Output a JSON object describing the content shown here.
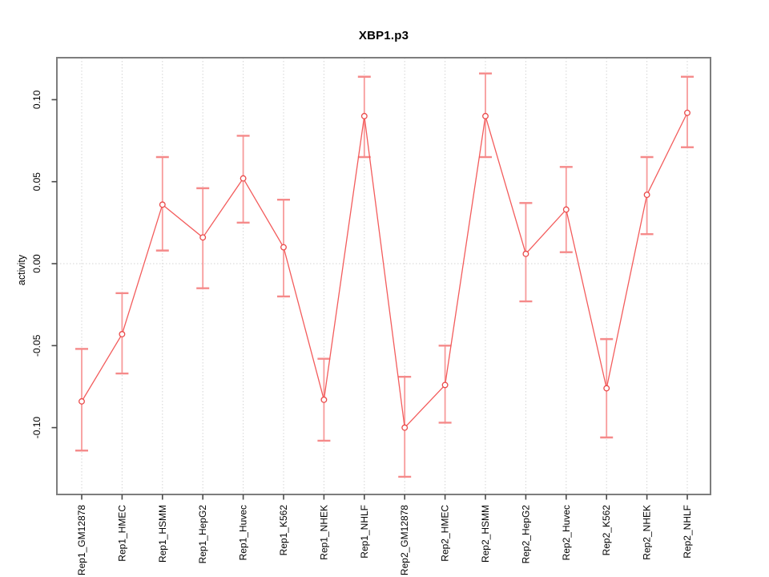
{
  "chart_data": {
    "type": "line",
    "title": "XBP1.p3",
    "xlabel": "",
    "ylabel": "activity",
    "categories": [
      "Rep1_GM12878",
      "Rep1_HMEC",
      "Rep1_HSMM",
      "Rep1_HepG2",
      "Rep1_Huvec",
      "Rep1_K562",
      "Rep1_NHEK",
      "Rep1_NHLF",
      "Rep2_GM12878",
      "Rep2_HMEC",
      "Rep2_HSMM",
      "Rep2_HepG2",
      "Rep2_Huvec",
      "Rep2_K562",
      "Rep2_NHEK",
      "Rep2_NHLF"
    ],
    "series": [
      {
        "name": "activity",
        "values": [
          -0.084,
          -0.043,
          0.036,
          0.016,
          0.052,
          0.01,
          -0.083,
          0.09,
          -0.1,
          -0.074,
          0.09,
          0.006,
          0.033,
          -0.076,
          0.042,
          0.092
        ],
        "upper": [
          -0.052,
          -0.018,
          0.065,
          0.046,
          0.078,
          0.039,
          -0.058,
          0.114,
          -0.069,
          -0.05,
          0.116,
          0.037,
          0.059,
          -0.046,
          0.065,
          0.114
        ],
        "lower": [
          -0.114,
          -0.067,
          0.008,
          -0.015,
          0.025,
          -0.02,
          -0.108,
          0.065,
          -0.13,
          -0.097,
          0.065,
          -0.023,
          0.007,
          -0.106,
          0.018,
          0.071
        ]
      }
    ],
    "yticks": {
      "values": [
        0.1,
        0.05,
        0.0,
        -0.05,
        -0.1
      ],
      "labels": [
        "0.10",
        "0.05",
        "0.00",
        "-0.05",
        "-0.10"
      ]
    },
    "ylim": [
      -0.141,
      0.126
    ],
    "grid": {
      "vertical_per_category": true,
      "horizontal_zero_line": true,
      "style": "dotted"
    },
    "legend": "none",
    "error_bars": true,
    "colors": {
      "line": "#f35c5c",
      "error_bar": "#f79b9b",
      "error_cap": "#f58a8a",
      "point_stroke": "#ea4a4a",
      "point_fill": "#ffffff",
      "box": "#7d7d7d",
      "tick": "#4a4a4a",
      "grid": "#d4d4d4",
      "text": "#000000"
    }
  }
}
